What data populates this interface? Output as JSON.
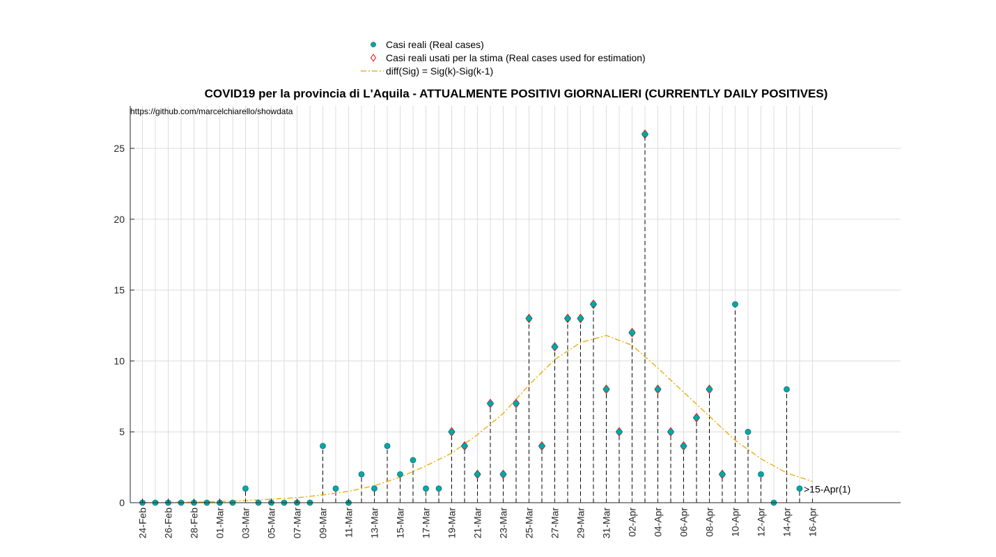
{
  "chart_data": {
    "type": "scatter",
    "title": "COVID19 per la provincia di L'Aquila - ATTUALMENTE POSITIVI GIORNALIERI (CURRENTLY DAILY POSITIVES)",
    "annotation": "https://github.com/marcelchiarello/showdata",
    "end_label": ">15-Apr(1)",
    "xlabel": "",
    "ylabel": "",
    "ylim": [
      0,
      28
    ],
    "y_ticks": [
      0,
      5,
      10,
      15,
      20,
      25
    ],
    "grid": true,
    "legend_position": "top-center",
    "x_tick_labels": [
      "24-Feb",
      "26-Feb",
      "28-Feb",
      "01-Mar",
      "03-Mar",
      "05-Mar",
      "07-Mar",
      "09-Mar",
      "11-Mar",
      "13-Mar",
      "15-Mar",
      "17-Mar",
      "19-Mar",
      "21-Mar",
      "23-Mar",
      "25-Mar",
      "27-Mar",
      "29-Mar",
      "31-Mar",
      "02-Apr",
      "04-Apr",
      "06-Apr",
      "08-Apr",
      "10-Apr",
      "12-Apr",
      "14-Apr",
      "16-Apr"
    ],
    "dates": [
      "24-Feb",
      "25-Feb",
      "26-Feb",
      "27-Feb",
      "28-Feb",
      "29-Feb",
      "01-Mar",
      "02-Mar",
      "03-Mar",
      "04-Mar",
      "05-Mar",
      "06-Mar",
      "07-Mar",
      "08-Mar",
      "09-Mar",
      "10-Mar",
      "11-Mar",
      "12-Mar",
      "13-Mar",
      "14-Mar",
      "15-Mar",
      "16-Mar",
      "17-Mar",
      "18-Mar",
      "19-Mar",
      "20-Mar",
      "21-Mar",
      "22-Mar",
      "23-Mar",
      "24-Mar",
      "25-Mar",
      "26-Mar",
      "27-Mar",
      "28-Mar",
      "29-Mar",
      "30-Mar",
      "31-Mar",
      "01-Apr",
      "02-Apr",
      "03-Apr",
      "04-Apr",
      "05-Apr",
      "06-Apr",
      "07-Apr",
      "08-Apr",
      "09-Apr",
      "10-Apr",
      "11-Apr",
      "12-Apr",
      "13-Apr",
      "14-Apr",
      "15-Apr"
    ],
    "series": [
      {
        "name": "Casi reali (Real cases)",
        "marker": "circle",
        "color": "#00a8a8",
        "values": [
          0,
          0,
          0,
          0,
          0,
          0,
          0,
          0,
          1,
          0,
          0,
          0,
          0,
          0,
          4,
          1,
          0,
          2,
          1,
          4,
          2,
          3,
          1,
          1,
          5,
          4,
          2,
          7,
          2,
          7,
          13,
          4,
          11,
          13,
          13,
          14,
          8,
          5,
          12,
          26,
          8,
          5,
          4,
          6,
          8,
          2,
          14,
          5,
          2,
          0,
          8,
          1
        ]
      },
      {
        "name": "Casi reali usati per la stima (Real cases used for estimation)",
        "marker": "diamond",
        "color": "#ff0000",
        "dates": [
          "19-Mar",
          "20-Mar",
          "21-Mar",
          "22-Mar",
          "23-Mar",
          "24-Mar",
          "25-Mar",
          "26-Mar",
          "27-Mar",
          "28-Mar",
          "29-Mar",
          "30-Mar",
          "31-Mar",
          "01-Apr",
          "02-Apr",
          "03-Apr",
          "04-Apr",
          "05-Apr",
          "06-Apr",
          "07-Apr",
          "08-Apr",
          "09-Apr"
        ],
        "values": [
          5,
          4,
          2,
          7,
          2,
          7,
          13,
          4,
          11,
          13,
          13,
          14,
          8,
          5,
          12,
          26,
          8,
          5,
          4,
          6,
          8,
          2
        ]
      },
      {
        "name": "diff(Sig) = Sig(k)-Sig(k-1)",
        "marker": "dashdot-line",
        "color": "#edb120",
        "dates": [
          "24-Feb",
          "26-Feb",
          "28-Feb",
          "01-Mar",
          "03-Mar",
          "05-Mar",
          "07-Mar",
          "09-Mar",
          "11-Mar",
          "13-Mar",
          "15-Mar",
          "17-Mar",
          "19-Mar",
          "21-Mar",
          "23-Mar",
          "25-Mar",
          "27-Mar",
          "29-Mar",
          "31-Mar",
          "02-Apr",
          "04-Apr",
          "06-Apr",
          "08-Apr",
          "10-Apr",
          "12-Apr",
          "14-Apr",
          "16-Apr"
        ],
        "values": [
          0.0,
          0.02,
          0.04,
          0.08,
          0.15,
          0.25,
          0.35,
          0.55,
          0.8,
          1.2,
          1.8,
          2.6,
          3.5,
          4.8,
          6.3,
          8.3,
          10.1,
          11.3,
          11.8,
          11.1,
          9.5,
          7.8,
          6.1,
          4.4,
          3.1,
          2.1,
          1.5
        ]
      }
    ]
  }
}
